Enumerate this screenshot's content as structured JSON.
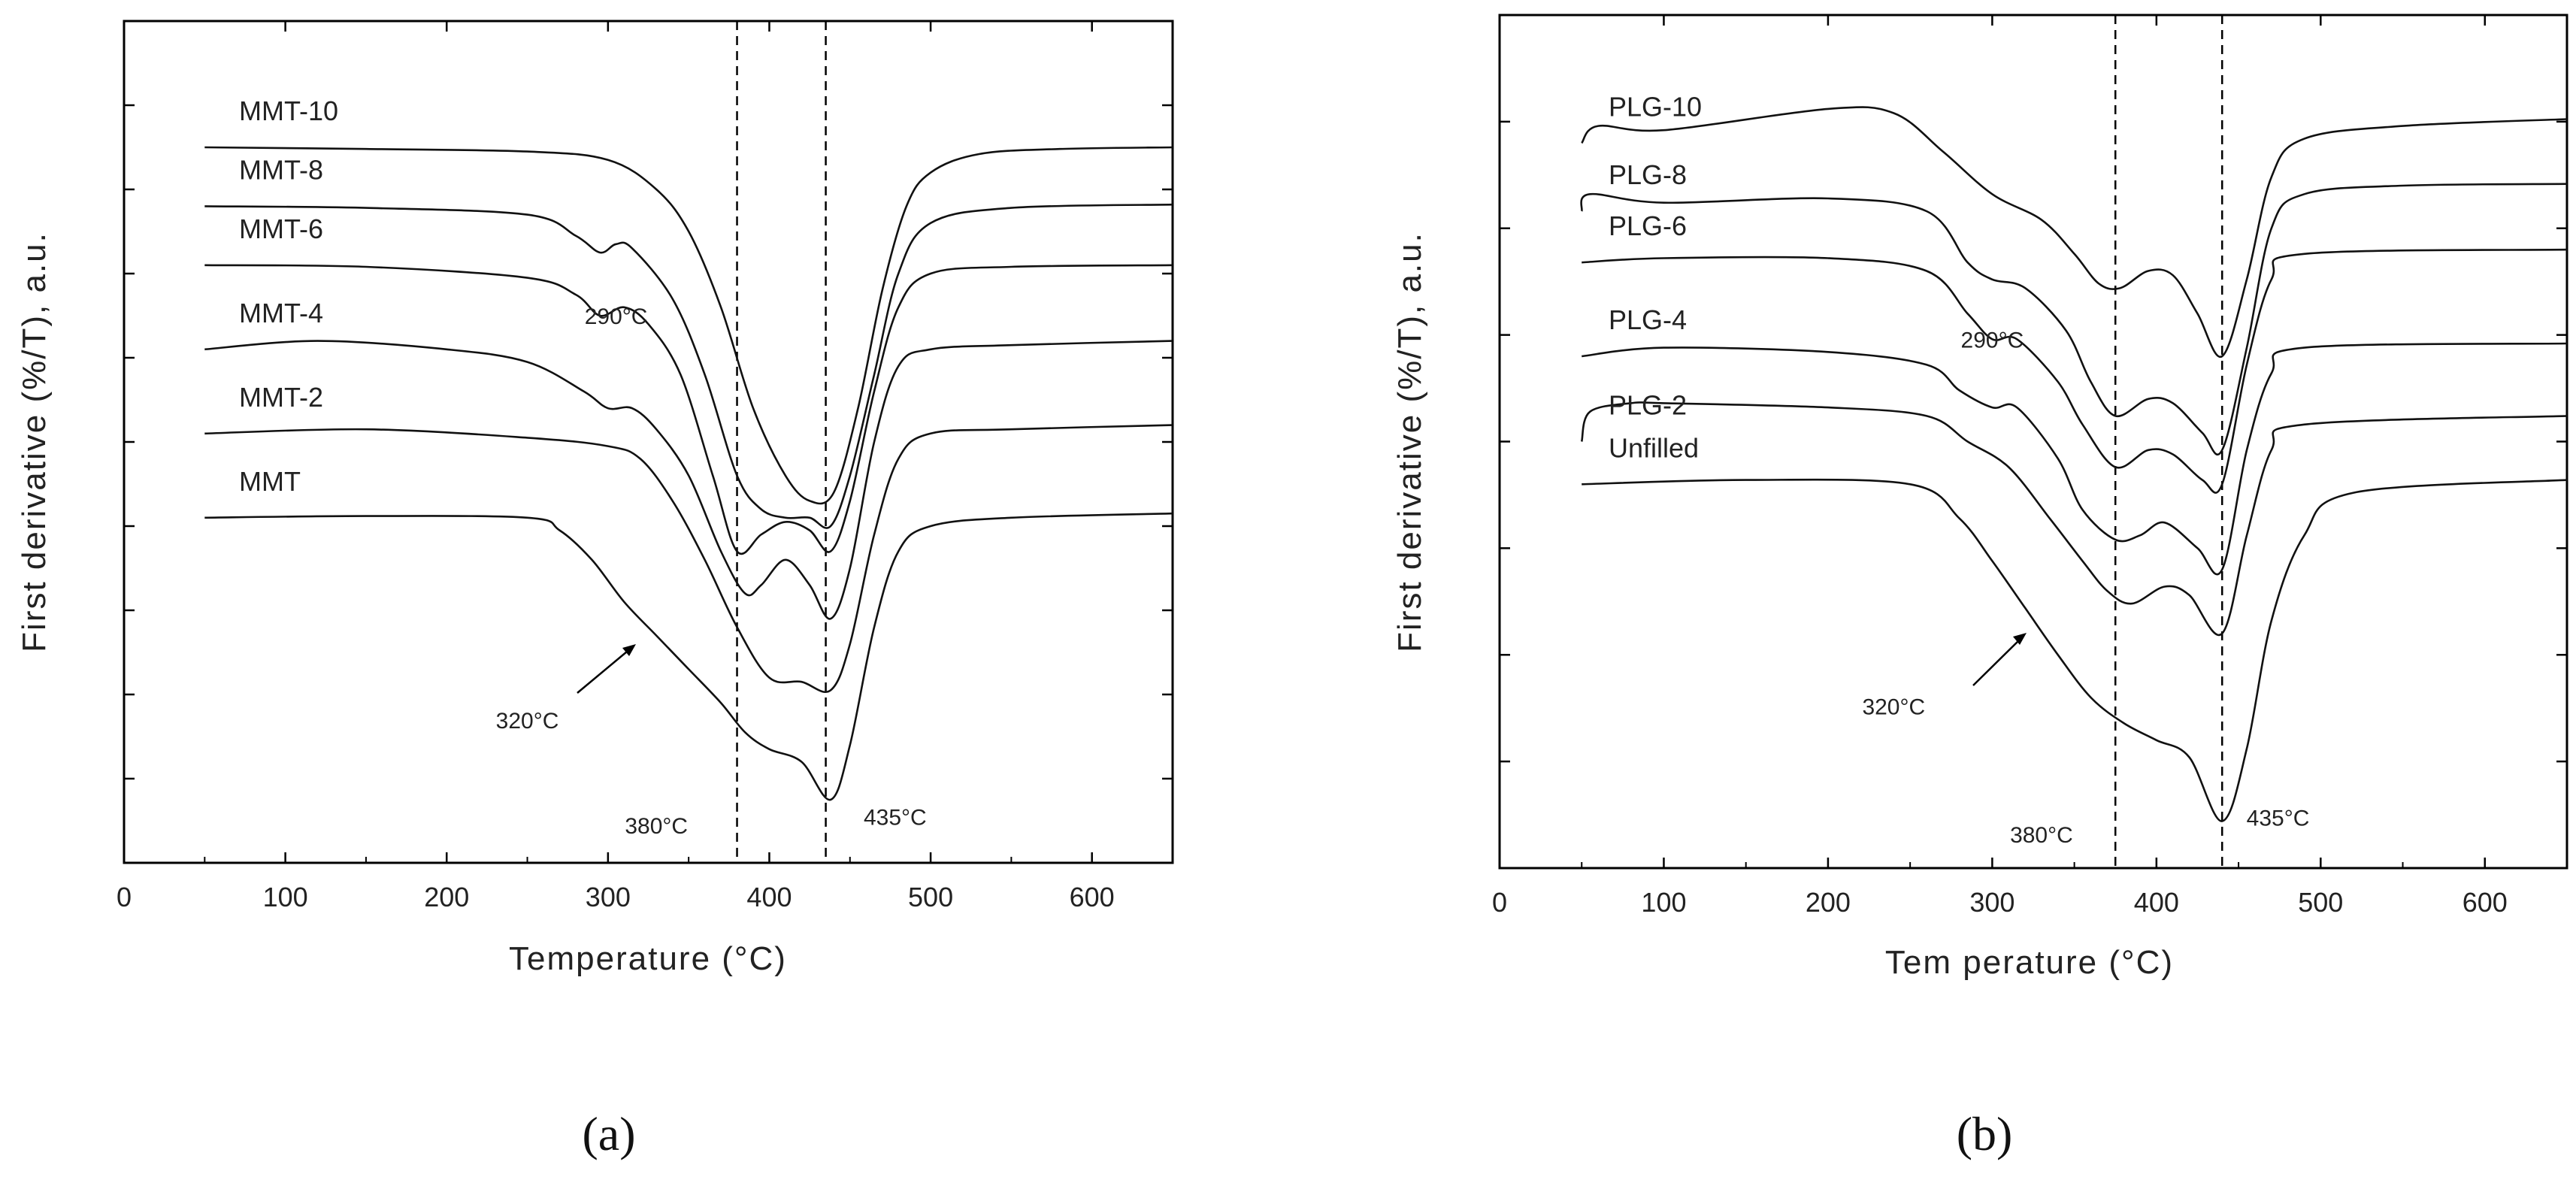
{
  "chart_data": [
    {
      "type": "line",
      "panel_label": "(a)",
      "xlabel": "Temperature (°C)",
      "ylabel": "First derivative (%/T), a.u.",
      "xlim": [
        0,
        650
      ],
      "ylim": [
        0,
        10
      ],
      "x_ticks": [
        0,
        100,
        200,
        300,
        400,
        500,
        600
      ],
      "x_tick_labels": [
        "0",
        "100",
        "200",
        "300",
        "400",
        "500",
        "600"
      ],
      "y_tick_count": 10,
      "reference_lines_x": [
        380,
        435
      ],
      "series": [
        {
          "name": "MMT-10",
          "label": "MMT-10",
          "points": [
            [
              50,
              8.5
            ],
            [
              150,
              8.48
            ],
            [
              250,
              8.45
            ],
            [
              300,
              8.35
            ],
            [
              330,
              8.0
            ],
            [
              350,
              7.5
            ],
            [
              370,
              6.6
            ],
            [
              390,
              5.4
            ],
            [
              410,
              4.6
            ],
            [
              425,
              4.3
            ],
            [
              440,
              4.4
            ],
            [
              455,
              5.4
            ],
            [
              470,
              6.8
            ],
            [
              485,
              7.8
            ],
            [
              500,
              8.2
            ],
            [
              530,
              8.42
            ],
            [
              580,
              8.48
            ],
            [
              650,
              8.5
            ]
          ]
        },
        {
          "name": "MMT-8",
          "label": "MMT-8",
          "points": [
            [
              50,
              7.8
            ],
            [
              150,
              7.78
            ],
            [
              250,
              7.7
            ],
            [
              280,
              7.45
            ],
            [
              295,
              7.25
            ],
            [
              305,
              7.35
            ],
            [
              315,
              7.3
            ],
            [
              340,
              6.7
            ],
            [
              360,
              5.8
            ],
            [
              380,
              4.6
            ],
            [
              395,
              4.2
            ],
            [
              410,
              4.1
            ],
            [
              425,
              4.1
            ],
            [
              438,
              4.0
            ],
            [
              450,
              4.6
            ],
            [
              465,
              5.8
            ],
            [
              480,
              7.0
            ],
            [
              500,
              7.6
            ],
            [
              550,
              7.78
            ],
            [
              650,
              7.82
            ]
          ]
        },
        {
          "name": "MMT-6",
          "label": "MMT-6",
          "points": [
            [
              50,
              7.1
            ],
            [
              150,
              7.08
            ],
            [
              250,
              6.95
            ],
            [
              280,
              6.75
            ],
            [
              295,
              6.5
            ],
            [
              310,
              6.6
            ],
            [
              325,
              6.4
            ],
            [
              345,
              5.8
            ],
            [
              365,
              4.6
            ],
            [
              380,
              3.7
            ],
            [
              395,
              3.9
            ],
            [
              410,
              4.05
            ],
            [
              425,
              3.95
            ],
            [
              438,
              3.7
            ],
            [
              450,
              4.3
            ],
            [
              465,
              5.6
            ],
            [
              480,
              6.6
            ],
            [
              500,
              7.0
            ],
            [
              550,
              7.08
            ],
            [
              650,
              7.1
            ]
          ]
        },
        {
          "name": "MMT-4",
          "label": "MMT-4",
          "points": [
            [
              50,
              6.1
            ],
            [
              120,
              6.2
            ],
            [
              200,
              6.1
            ],
            [
              250,
              5.95
            ],
            [
              285,
              5.6
            ],
            [
              300,
              5.4
            ],
            [
              315,
              5.4
            ],
            [
              330,
              5.15
            ],
            [
              350,
              4.6
            ],
            [
              370,
              3.7
            ],
            [
              385,
              3.2
            ],
            [
              395,
              3.3
            ],
            [
              410,
              3.6
            ],
            [
              425,
              3.3
            ],
            [
              438,
              2.9
            ],
            [
              450,
              3.5
            ],
            [
              465,
              5.0
            ],
            [
              480,
              5.9
            ],
            [
              500,
              6.1
            ],
            [
              550,
              6.15
            ],
            [
              650,
              6.2
            ]
          ]
        },
        {
          "name": "MMT-2",
          "label": "MMT-2",
          "points": [
            [
              50,
              5.1
            ],
            [
              150,
              5.15
            ],
            [
              250,
              5.05
            ],
            [
              300,
              4.95
            ],
            [
              320,
              4.8
            ],
            [
              340,
              4.3
            ],
            [
              360,
              3.6
            ],
            [
              380,
              2.8
            ],
            [
              400,
              2.2
            ],
            [
              420,
              2.15
            ],
            [
              438,
              2.05
            ],
            [
              450,
              2.6
            ],
            [
              465,
              3.9
            ],
            [
              480,
              4.8
            ],
            [
              500,
              5.1
            ],
            [
              550,
              5.15
            ],
            [
              650,
              5.2
            ]
          ]
        },
        {
          "name": "MMT",
          "label": "MMT",
          "points": [
            [
              50,
              4.1
            ],
            [
              150,
              4.12
            ],
            [
              250,
              4.1
            ],
            [
              270,
              3.95
            ],
            [
              290,
              3.6
            ],
            [
              310,
              3.1
            ],
            [
              330,
              2.7
            ],
            [
              350,
              2.3
            ],
            [
              370,
              1.9
            ],
            [
              385,
              1.55
            ],
            [
              400,
              1.35
            ],
            [
              420,
              1.2
            ],
            [
              438,
              0.75
            ],
            [
              450,
              1.4
            ],
            [
              465,
              2.8
            ],
            [
              480,
              3.7
            ],
            [
              500,
              4.0
            ],
            [
              550,
              4.1
            ],
            [
              650,
              4.15
            ]
          ]
        }
      ],
      "annotations": [
        {
          "text": "290°C",
          "x": 305,
          "y": 6.4
        },
        {
          "text": "320°C",
          "x": 250,
          "y": 1.6
        },
        {
          "text": "380°C",
          "x": 330,
          "y": 0.35
        },
        {
          "text": "435°C",
          "x": 478,
          "y": 0.45
        }
      ]
    },
    {
      "type": "line",
      "panel_label": "(b)",
      "xlabel": "Tem perature (°C)",
      "ylabel": "First derivative (%/T), a.u.",
      "xlim": [
        0,
        650
      ],
      "ylim": [
        0,
        10
      ],
      "x_ticks": [
        0,
        100,
        200,
        300,
        400,
        500,
        600
      ],
      "x_tick_labels": [
        "0",
        "100",
        "200",
        "300",
        "400",
        "500",
        "600"
      ],
      "y_tick_count": 8,
      "reference_lines_x": [
        375,
        440
      ],
      "series": [
        {
          "name": "PLG-10",
          "label": "PLG-10",
          "points": [
            [
              50,
              8.5
            ],
            [
              60,
              8.7
            ],
            [
              100,
              8.65
            ],
            [
              200,
              8.9
            ],
            [
              240,
              8.85
            ],
            [
              270,
              8.4
            ],
            [
              300,
              7.9
            ],
            [
              330,
              7.6
            ],
            [
              350,
              7.2
            ],
            [
              365,
              6.85
            ],
            [
              378,
              6.8
            ],
            [
              395,
              7.0
            ],
            [
              410,
              6.95
            ],
            [
              425,
              6.5
            ],
            [
              440,
              6.0
            ],
            [
              455,
              6.9
            ],
            [
              470,
              8.1
            ],
            [
              490,
              8.55
            ],
            [
              550,
              8.7
            ],
            [
              650,
              8.78
            ]
          ]
        },
        {
          "name": "PLG-8",
          "label": "PLG-8",
          "points": [
            [
              50,
              7.7
            ],
            [
              55,
              7.9
            ],
            [
              100,
              7.8
            ],
            [
              200,
              7.85
            ],
            [
              260,
              7.7
            ],
            [
              285,
              7.1
            ],
            [
              300,
              6.9
            ],
            [
              320,
              6.8
            ],
            [
              345,
              6.3
            ],
            [
              360,
              5.7
            ],
            [
              375,
              5.3
            ],
            [
              395,
              5.5
            ],
            [
              410,
              5.45
            ],
            [
              428,
              5.1
            ],
            [
              440,
              4.9
            ],
            [
              455,
              6.1
            ],
            [
              470,
              7.5
            ],
            [
              490,
              7.9
            ],
            [
              550,
              8.0
            ],
            [
              650,
              8.02
            ]
          ]
        },
        {
          "name": "PLG-6",
          "label": "PLG-6",
          "points": [
            [
              50,
              7.1
            ],
            [
              100,
              7.15
            ],
            [
              200,
              7.15
            ],
            [
              260,
              7.0
            ],
            [
              285,
              6.5
            ],
            [
              300,
              6.2
            ],
            [
              315,
              6.2
            ],
            [
              340,
              5.7
            ],
            [
              355,
              5.2
            ],
            [
              375,
              4.7
            ],
            [
              395,
              4.9
            ],
            [
              410,
              4.85
            ],
            [
              428,
              4.55
            ],
            [
              440,
              4.5
            ],
            [
              455,
              5.9
            ],
            [
              470,
              6.9
            ],
            [
              490,
              7.2
            ],
            [
              650,
              7.25
            ]
          ]
        },
        {
          "name": "PLG-4",
          "label": "PLG-4",
          "points": [
            [
              50,
              6.0
            ],
            [
              100,
              6.1
            ],
            [
              200,
              6.05
            ],
            [
              260,
              5.9
            ],
            [
              280,
              5.6
            ],
            [
              300,
              5.4
            ],
            [
              315,
              5.4
            ],
            [
              340,
              4.8
            ],
            [
              355,
              4.2
            ],
            [
              375,
              3.85
            ],
            [
              390,
              3.9
            ],
            [
              405,
              4.05
            ],
            [
              425,
              3.75
            ],
            [
              440,
              3.5
            ],
            [
              455,
              4.9
            ],
            [
              470,
              5.8
            ],
            [
              490,
              6.1
            ],
            [
              650,
              6.15
            ]
          ]
        },
        {
          "name": "PLG-2",
          "label": "PLG-2",
          "points": [
            [
              50,
              5.0
            ],
            [
              55,
              5.35
            ],
            [
              80,
              5.45
            ],
            [
              100,
              5.45
            ],
            [
              200,
              5.4
            ],
            [
              260,
              5.3
            ],
            [
              285,
              5.0
            ],
            [
              310,
              4.7
            ],
            [
              335,
              4.1
            ],
            [
              355,
              3.6
            ],
            [
              370,
              3.25
            ],
            [
              385,
              3.1
            ],
            [
              405,
              3.3
            ],
            [
              420,
              3.2
            ],
            [
              440,
              2.75
            ],
            [
              455,
              3.9
            ],
            [
              470,
              4.9
            ],
            [
              490,
              5.2
            ],
            [
              650,
              5.3
            ]
          ]
        },
        {
          "name": "Unfilled",
          "label": "Unfilled",
          "points": [
            [
              50,
              4.5
            ],
            [
              150,
              4.55
            ],
            [
              250,
              4.5
            ],
            [
              280,
              4.1
            ],
            [
              300,
              3.6
            ],
            [
              320,
              3.05
            ],
            [
              340,
              2.5
            ],
            [
              360,
              2.0
            ],
            [
              380,
              1.7
            ],
            [
              400,
              1.5
            ],
            [
              420,
              1.3
            ],
            [
              440,
              0.55
            ],
            [
              455,
              1.4
            ],
            [
              470,
              2.9
            ],
            [
              490,
              3.9
            ],
            [
              520,
              4.4
            ],
            [
              650,
              4.55
            ]
          ]
        }
      ],
      "annotations": [
        {
          "text": "290°C",
          "x": 300,
          "y": 6.1
        },
        {
          "text": "320°C",
          "x": 240,
          "y": 1.8
        },
        {
          "text": "380°C",
          "x": 330,
          "y": 0.3
        },
        {
          "text": "435°C",
          "x": 474,
          "y": 0.5
        }
      ]
    }
  ]
}
